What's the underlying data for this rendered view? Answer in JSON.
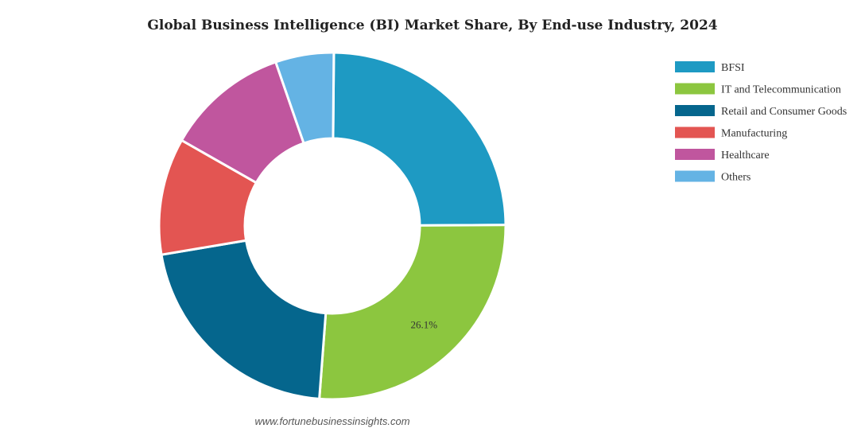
{
  "chart_data": {
    "type": "pie",
    "title": "Global Business Intelligence (BI) Market Share, By End-use Industry, 2024",
    "categories": [
      "BFSI",
      "IT and Telecommunication",
      "Retail and Consumer Goods",
      "Manufacturing",
      "Healthcare",
      "Others"
    ],
    "values": [
      24.6,
      26.1,
      21.0,
      10.8,
      11.4,
      5.4
    ],
    "colors": [
      "#1e9ac3",
      "#8cc63f",
      "#05668d",
      "#e35552",
      "#c0569e",
      "#64b3e4"
    ],
    "data_labels": [
      "",
      "26.1%",
      "",
      "",
      "",
      ""
    ],
    "donut": true,
    "legend_position": "top-right"
  },
  "source_text": "www.fortunebusinessinsights.com"
}
